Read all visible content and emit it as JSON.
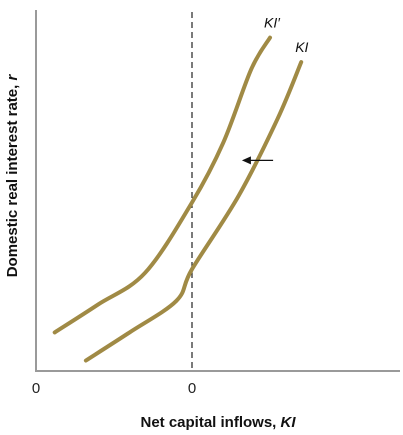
{
  "chart_data": {
    "type": "line",
    "xlabel_text": "Net capital inflows, ",
    "xlabel_italic": "KI",
    "ylabel_text": "Domestic real interest rate, ",
    "ylabel_italic": "r",
    "x_tick_labels": [
      "0",
      "0"
    ],
    "series": [
      {
        "name": "KI′",
        "color": "#a08a45",
        "x": [
          -0.88,
          -0.6,
          -0.3,
          0.0,
          0.2,
          0.38,
          0.5
        ],
        "y": [
          0.11,
          0.19,
          0.28,
          0.48,
          0.65,
          0.86,
          0.95
        ]
      },
      {
        "name": "KI",
        "color": "#a08a45",
        "x": [
          -0.68,
          -0.4,
          -0.1,
          0.0,
          0.3,
          0.55,
          0.7
        ],
        "y": [
          0.03,
          0.11,
          0.2,
          0.29,
          0.5,
          0.72,
          0.88
        ]
      }
    ],
    "shift_arrow": {
      "from": [
        0.52,
        0.6
      ],
      "to": [
        0.32,
        0.6
      ]
    },
    "xlim": [
      -1.0,
      1.2
    ],
    "ylim": [
      0,
      1
    ],
    "grid": false
  }
}
